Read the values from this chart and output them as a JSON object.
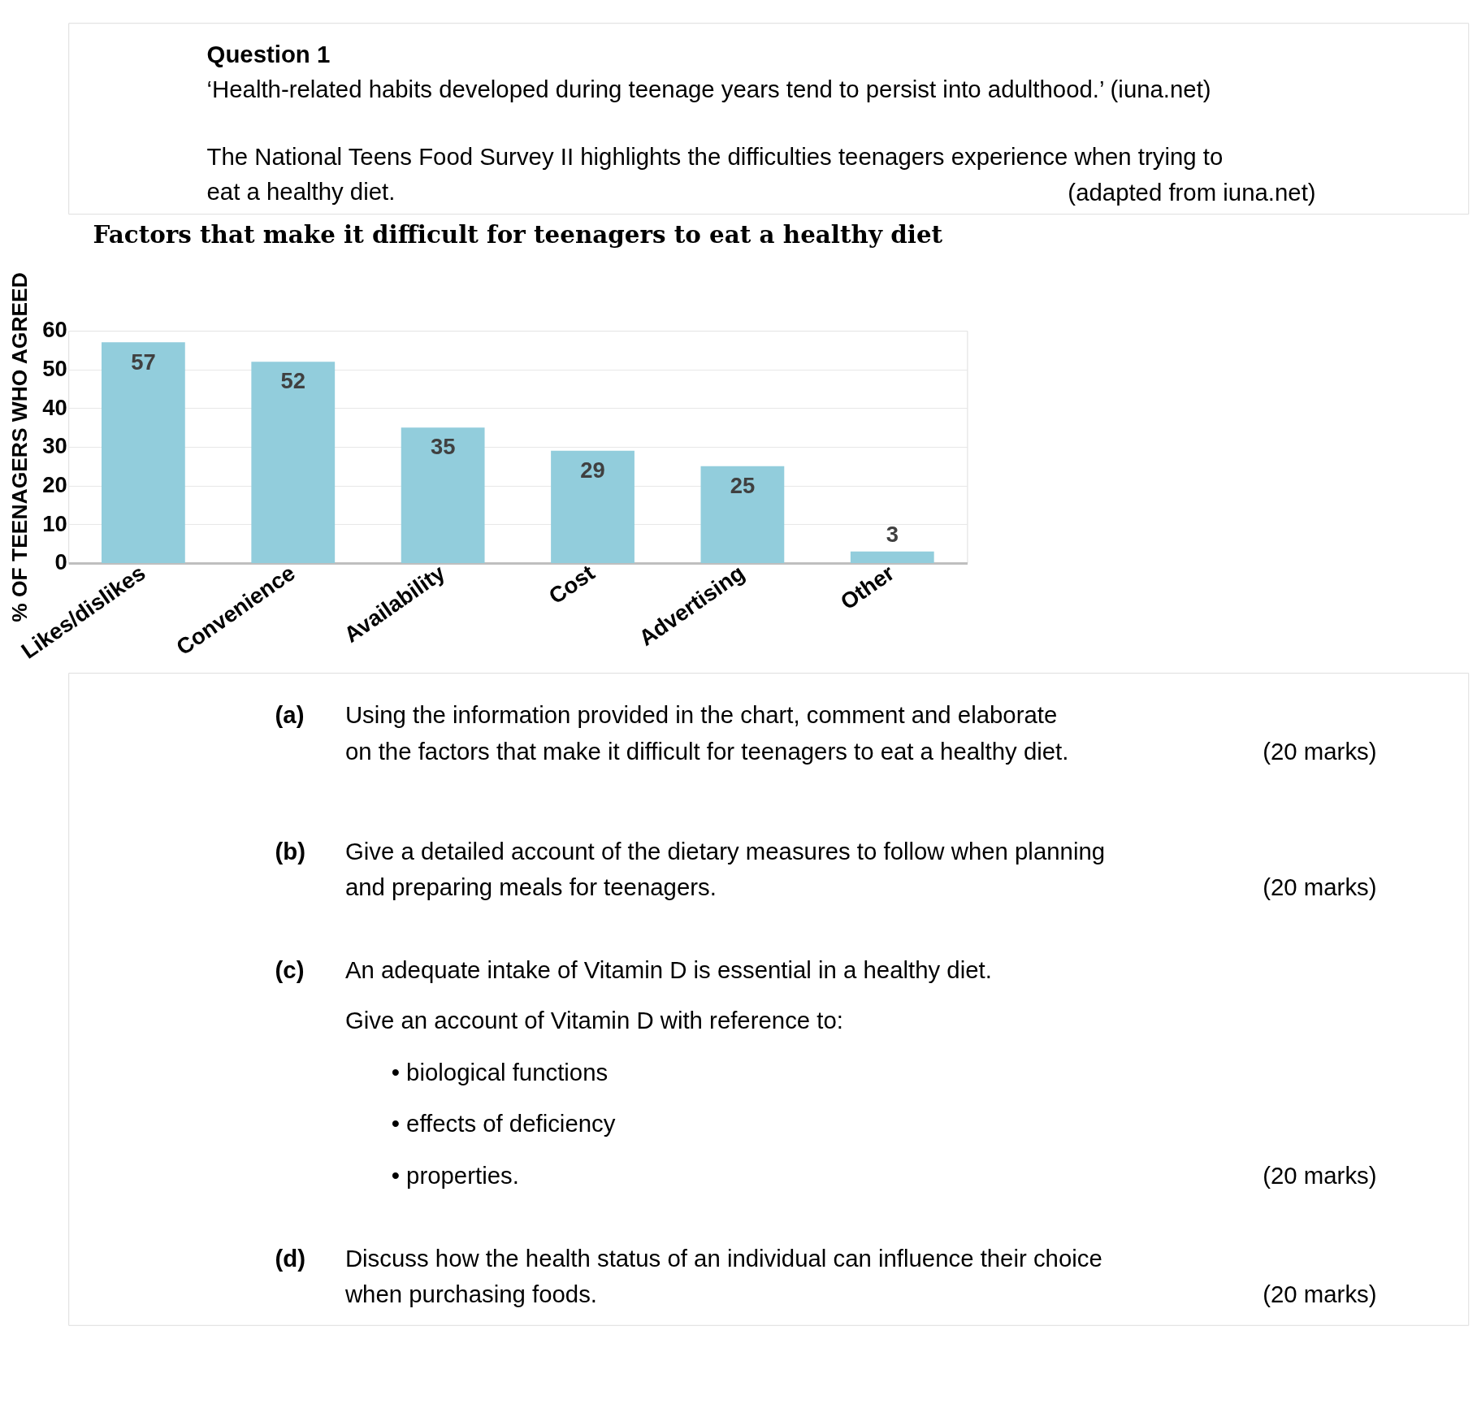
{
  "chart_data": {
    "type": "bar",
    "title": "Factors that make it difficult for teenagers to eat a healthy diet",
    "ylabel": "% OF TEENAGERS WHO AGREED",
    "categories": [
      "Likes/dislikes",
      "Convenience",
      "Availability",
      "Cost",
      "Advertising",
      "Other"
    ],
    "values": [
      57,
      52,
      35,
      29,
      25,
      3
    ],
    "color": "#92cddc",
    "ylim": [
      0,
      60
    ],
    "yticks": [
      0,
      10,
      20,
      30,
      40,
      50,
      60
    ],
    "grid": "y",
    "data_labels": true,
    "annotations": [
      "Question 1",
      "‘Health-related habits developed during teenage years tend to persist into adulthood.’ (iuna.net)",
      "The National Teens Food Survey II highlights the difficulties teenagers experience when trying to",
      "eat a healthy diet.",
      "(adapted from iuna.net)",
      "(a)",
      "Using the information provided in the chart, comment and elaborate",
      "on the factors that make it difficult for teenagers to eat a healthy diet.",
      "(20 marks)",
      "(b)",
      "Give a detailed account of the dietary measures to follow when planning",
      "and preparing meals for teenagers.",
      "(20 marks)",
      "(c)",
      "An adequate intake of Vitamin D is essential in a healthy diet.",
      "Give an account of Vitamin D with reference to:",
      "•   biological functions",
      "•   effects of deficiency",
      "•   properties.",
      "(20 marks)",
      "(d)",
      "Discuss how the health status of an individual can influence their choice",
      "when purchasing foods.",
      "(20 marks)"
    ]
  }
}
